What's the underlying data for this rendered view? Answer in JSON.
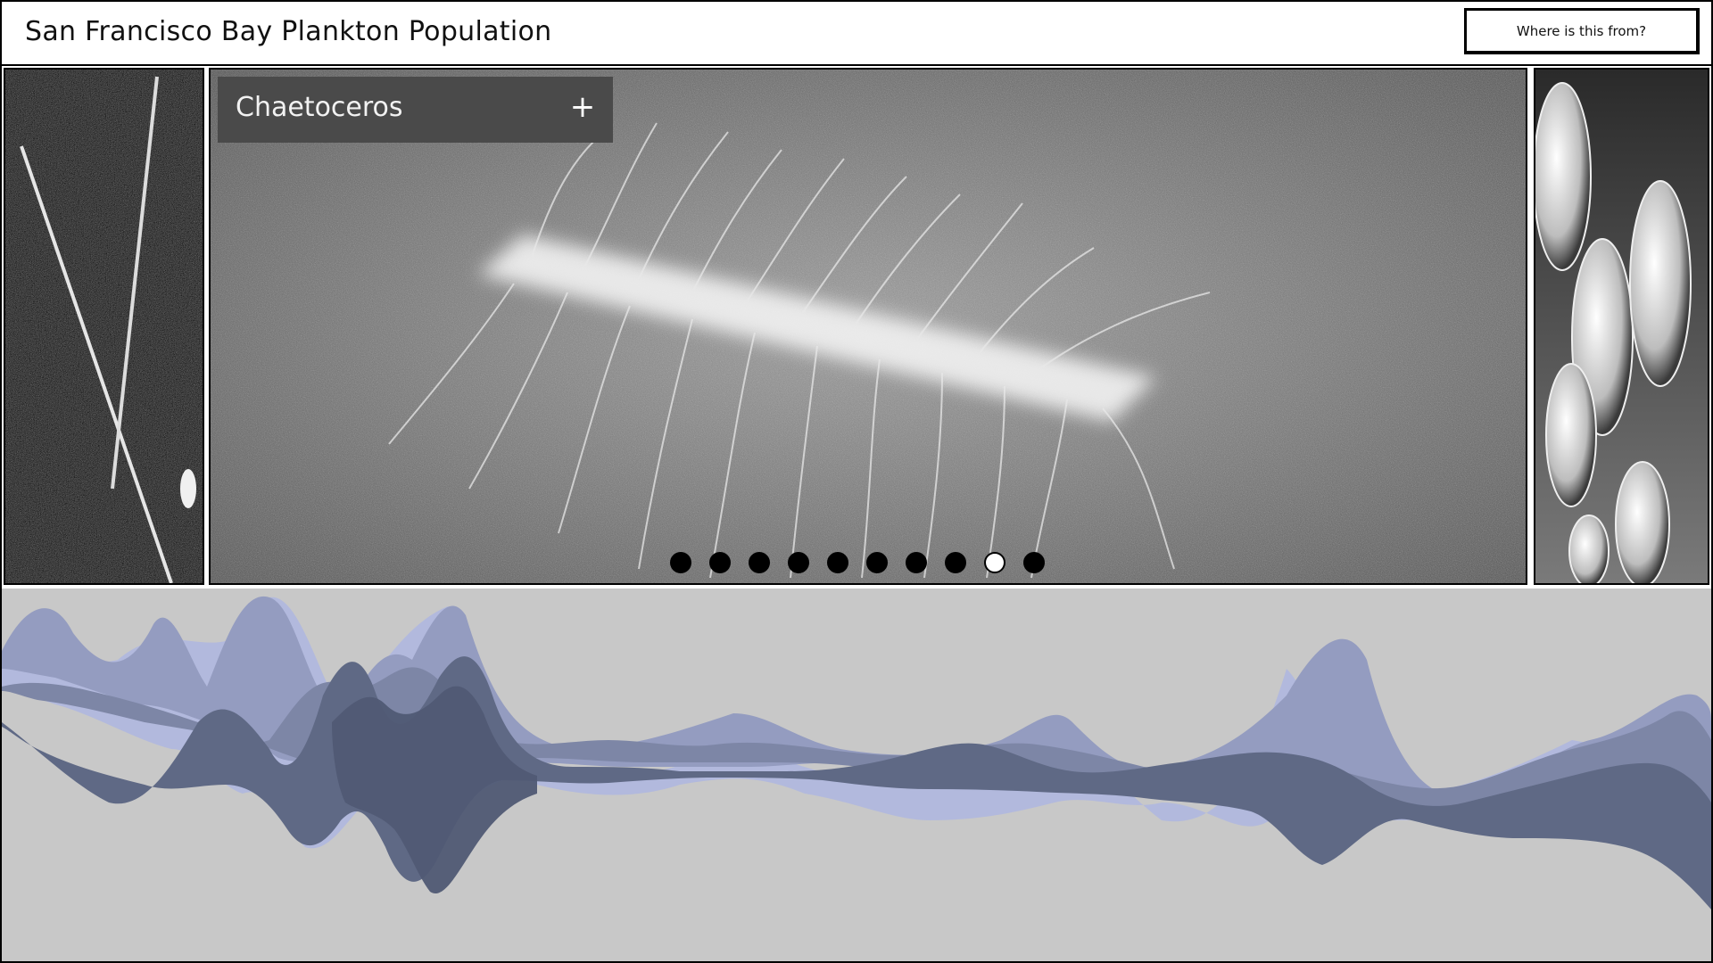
{
  "header": {
    "title": "San Francisco Bay Plankton Population",
    "source_button_label": "Where is this from?"
  },
  "carousel": {
    "current_species": "Chaetoceros",
    "expand_symbol": "+",
    "slide_count": 10,
    "active_index": 8
  },
  "icons": {
    "expand": "plus-icon"
  },
  "colors": {
    "stream_background": "#c8c8c8",
    "stream_palette": [
      "#9aa3c4",
      "#7d86a6",
      "#5c6680",
      "#b3bae0",
      "#6b7494"
    ]
  }
}
